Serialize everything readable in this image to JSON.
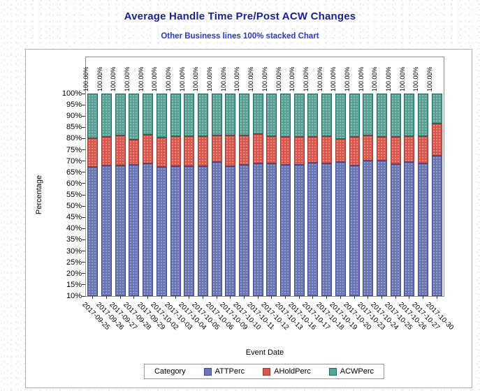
{
  "page": {
    "title": "Average Handle Time Pre/Post ACW Changes",
    "subtitle": "Other Business lines 100% stacked Chart"
  },
  "colors": {
    "title_text": "#1a2390",
    "subtitle_text": "#2c3bc0",
    "axis_frame": "#8f8f8f",
    "att_fill": "#6b77b4",
    "att_border": "#3a4896",
    "ahold_fill": "#d9594f",
    "ahold_border": "#9e3a2e",
    "acw_fill": "#5ba296",
    "acw_border": "#156b60"
  },
  "chart_data": {
    "type": "bar",
    "stacked": true,
    "percent_stacked": true,
    "title": "Average Handle Time Pre/Post ACW Changes",
    "subtitle": "Other Business lines 100% stacked Chart",
    "xlabel": "Event Date",
    "ylabel": "Percentage",
    "ylim": [
      10,
      100
    ],
    "grid": false,
    "legend_position": "bottom",
    "legend_title": "Category",
    "ytick_labels": [
      "10%",
      "15%",
      "20%",
      "25%",
      "30%",
      "35%",
      "40%",
      "45%",
      "50%",
      "55%",
      "60%",
      "65%",
      "70%",
      "75%",
      "80%",
      "85%",
      "90%",
      "95%",
      "100%"
    ],
    "categories": [
      "2017-09-25",
      "2017-09-26",
      "2017-09-27",
      "2017-09-28",
      "2017-09-29",
      "2017-10-02",
      "2017-10-03",
      "2017-10-04",
      "2017-10-05",
      "2017-10-06",
      "2017-10-09",
      "2017-10-10",
      "2017-10-11",
      "2017-10-12",
      "2017-10-13",
      "2017-10-16",
      "2017-10-17",
      "2017-10-18",
      "2017-10-19",
      "2017-10-20",
      "2017-10-23",
      "2017-10-24",
      "2017-10-25",
      "2017-10-26",
      "2017-10-27",
      "2017-10-30"
    ],
    "value_labels": [
      "100.00%",
      "100.00%",
      "100.00%",
      "100.00%",
      "100.00%",
      "100.00%",
      "100.00%",
      "100.00%",
      "100.00%",
      "100.00%",
      "100.00%",
      "100.00%",
      "100.00%",
      "100.00%",
      "100.00%",
      "100.00%",
      "100.00%",
      "100.00%",
      "100.00%",
      "100.00%",
      "100.00%",
      "100.00%",
      "100.00%",
      "100.00%",
      "100.00%",
      "100.00%"
    ],
    "series": [
      {
        "name": "ATTPerc",
        "fill": "#6b77b4",
        "border": "#3a4896",
        "values": [
          67.5,
          68.0,
          68.0,
          68.3,
          69.1,
          67.3,
          67.8,
          67.6,
          67.8,
          69.7,
          67.6,
          68.3,
          69.1,
          68.9,
          68.3,
          68.3,
          69.3,
          68.9,
          69.6,
          68.0,
          70.1,
          70.3,
          68.6,
          69.6,
          69.1,
          72.3
        ]
      },
      {
        "name": "AHoldPerc",
        "fill": "#d9594f",
        "border": "#9e3a2e",
        "values": [
          12.5,
          12.7,
          13.3,
          11.1,
          12.5,
          13.1,
          13.2,
          13.4,
          13.2,
          11.6,
          13.7,
          13.0,
          12.8,
          12.1,
          12.4,
          12.4,
          11.4,
          12.1,
          10.3,
          12.7,
          11.2,
          10.4,
          12.1,
          11.4,
          11.9,
          14.3
        ]
      },
      {
        "name": "ACWPerc",
        "fill": "#5ba296",
        "border": "#156b60",
        "values": [
          20.0,
          19.3,
          18.7,
          20.6,
          18.4,
          19.6,
          19.0,
          19.0,
          19.0,
          18.7,
          18.7,
          18.7,
          18.1,
          19.0,
          19.3,
          19.3,
          19.3,
          19.0,
          20.1,
          19.3,
          18.7,
          19.3,
          19.3,
          19.0,
          19.0,
          13.4
        ]
      }
    ]
  }
}
